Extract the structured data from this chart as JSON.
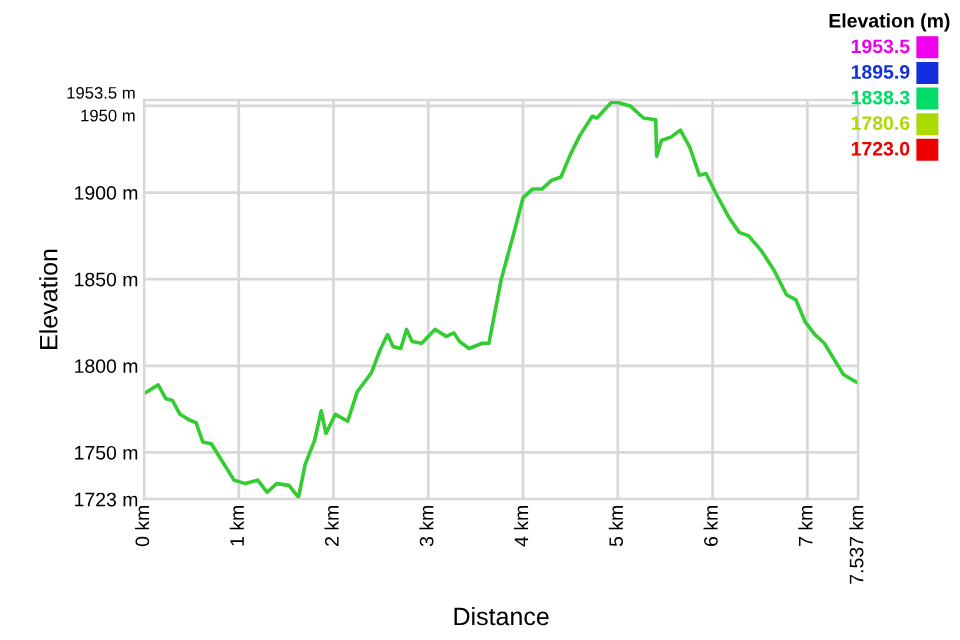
{
  "chart_data": {
    "type": "line",
    "xlabel": "Distance",
    "ylabel": "Elevation",
    "clabel": "Elevation (m)",
    "clim": [
      1723.0,
      1953.5
    ],
    "cticks": [
      {
        "value": 1953.5,
        "label": "1953.5"
      },
      {
        "value": 1895.9,
        "label": "1895.9"
      },
      {
        "value": 1838.3,
        "label": "1838.3"
      },
      {
        "value": 1780.6,
        "label": "1780.6"
      },
      {
        "value": 1723.0,
        "label": "1723.0"
      }
    ],
    "xlim": [
      0,
      7.537
    ],
    "ylim": [
      1723,
      1953.5
    ],
    "xticks": [
      {
        "value": 0,
        "label": "0 km"
      },
      {
        "value": 1,
        "label": "1 km"
      },
      {
        "value": 2,
        "label": "2 km"
      },
      {
        "value": 3,
        "label": "3 km"
      },
      {
        "value": 4,
        "label": "4 km"
      },
      {
        "value": 5,
        "label": "5 km"
      },
      {
        "value": 6,
        "label": "6 km"
      },
      {
        "value": 7,
        "label": "7 km"
      },
      {
        "value": 7.537,
        "label": "7.537 km"
      }
    ],
    "yticks": [
      {
        "value": 1723,
        "label": "1723 m"
      },
      {
        "value": 1750,
        "label": "1750 m"
      },
      {
        "value": 1800,
        "label": "1800 m"
      },
      {
        "value": 1850,
        "label": "1850 m"
      },
      {
        "value": 1900,
        "label": "1900 m"
      },
      {
        "value": 1950,
        "label": "1950 m"
      },
      {
        "value": 1953.5,
        "label": "1953.5 m"
      }
    ],
    "grid": true,
    "marker": "none",
    "series": [
      {
        "color": "#33cc33",
        "x": [
          0,
          0.15,
          0.23,
          0.3,
          0.38,
          0.47,
          0.55,
          0.62,
          0.71,
          0.87,
          0.95,
          1.07,
          1.2,
          1.3,
          1.4,
          1.53,
          1.63,
          1.7,
          1.8,
          1.87,
          1.92,
          2.02,
          2.15,
          2.25,
          2.4,
          2.49,
          2.57,
          2.63,
          2.71,
          2.77,
          2.83,
          2.93,
          3.07,
          3.19,
          3.27,
          3.33,
          3.43,
          3.57,
          3.64,
          3.77,
          3.9,
          4.0,
          4.1,
          4.2,
          4.3,
          4.4,
          4.5,
          4.6,
          4.73,
          4.78,
          4.93,
          5.0,
          5.13,
          5.27,
          5.4,
          5.41,
          5.46,
          5.56,
          5.66,
          5.76,
          5.86,
          5.93,
          6.05,
          6.18,
          6.28,
          6.38,
          6.52,
          6.65,
          6.78,
          6.88,
          6.98,
          7.08,
          7.18,
          7.28,
          7.38,
          7.537
        ],
        "values": [
          1784,
          1789,
          1781,
          1780,
          1772,
          1769,
          1767,
          1756,
          1755,
          1741,
          1734,
          1732,
          1734,
          1727,
          1732,
          1731,
          1724,
          1743,
          1757,
          1774,
          1761,
          1772,
          1768,
          1785,
          1796,
          1809,
          1818,
          1811,
          1810,
          1821,
          1814,
          1813,
          1821,
          1817,
          1819,
          1814,
          1810,
          1813,
          1813,
          1850,
          1876,
          1897,
          1902,
          1902,
          1907,
          1909,
          1922,
          1933,
          1944,
          1943,
          1952,
          1952,
          1950,
          1943,
          1942,
          1921,
          1930,
          1932,
          1936,
          1926,
          1910,
          1911,
          1898,
          1885,
          1877,
          1875,
          1866,
          1855,
          1841,
          1838,
          1825,
          1818,
          1813,
          1804,
          1795,
          1790
        ]
      }
    ]
  }
}
